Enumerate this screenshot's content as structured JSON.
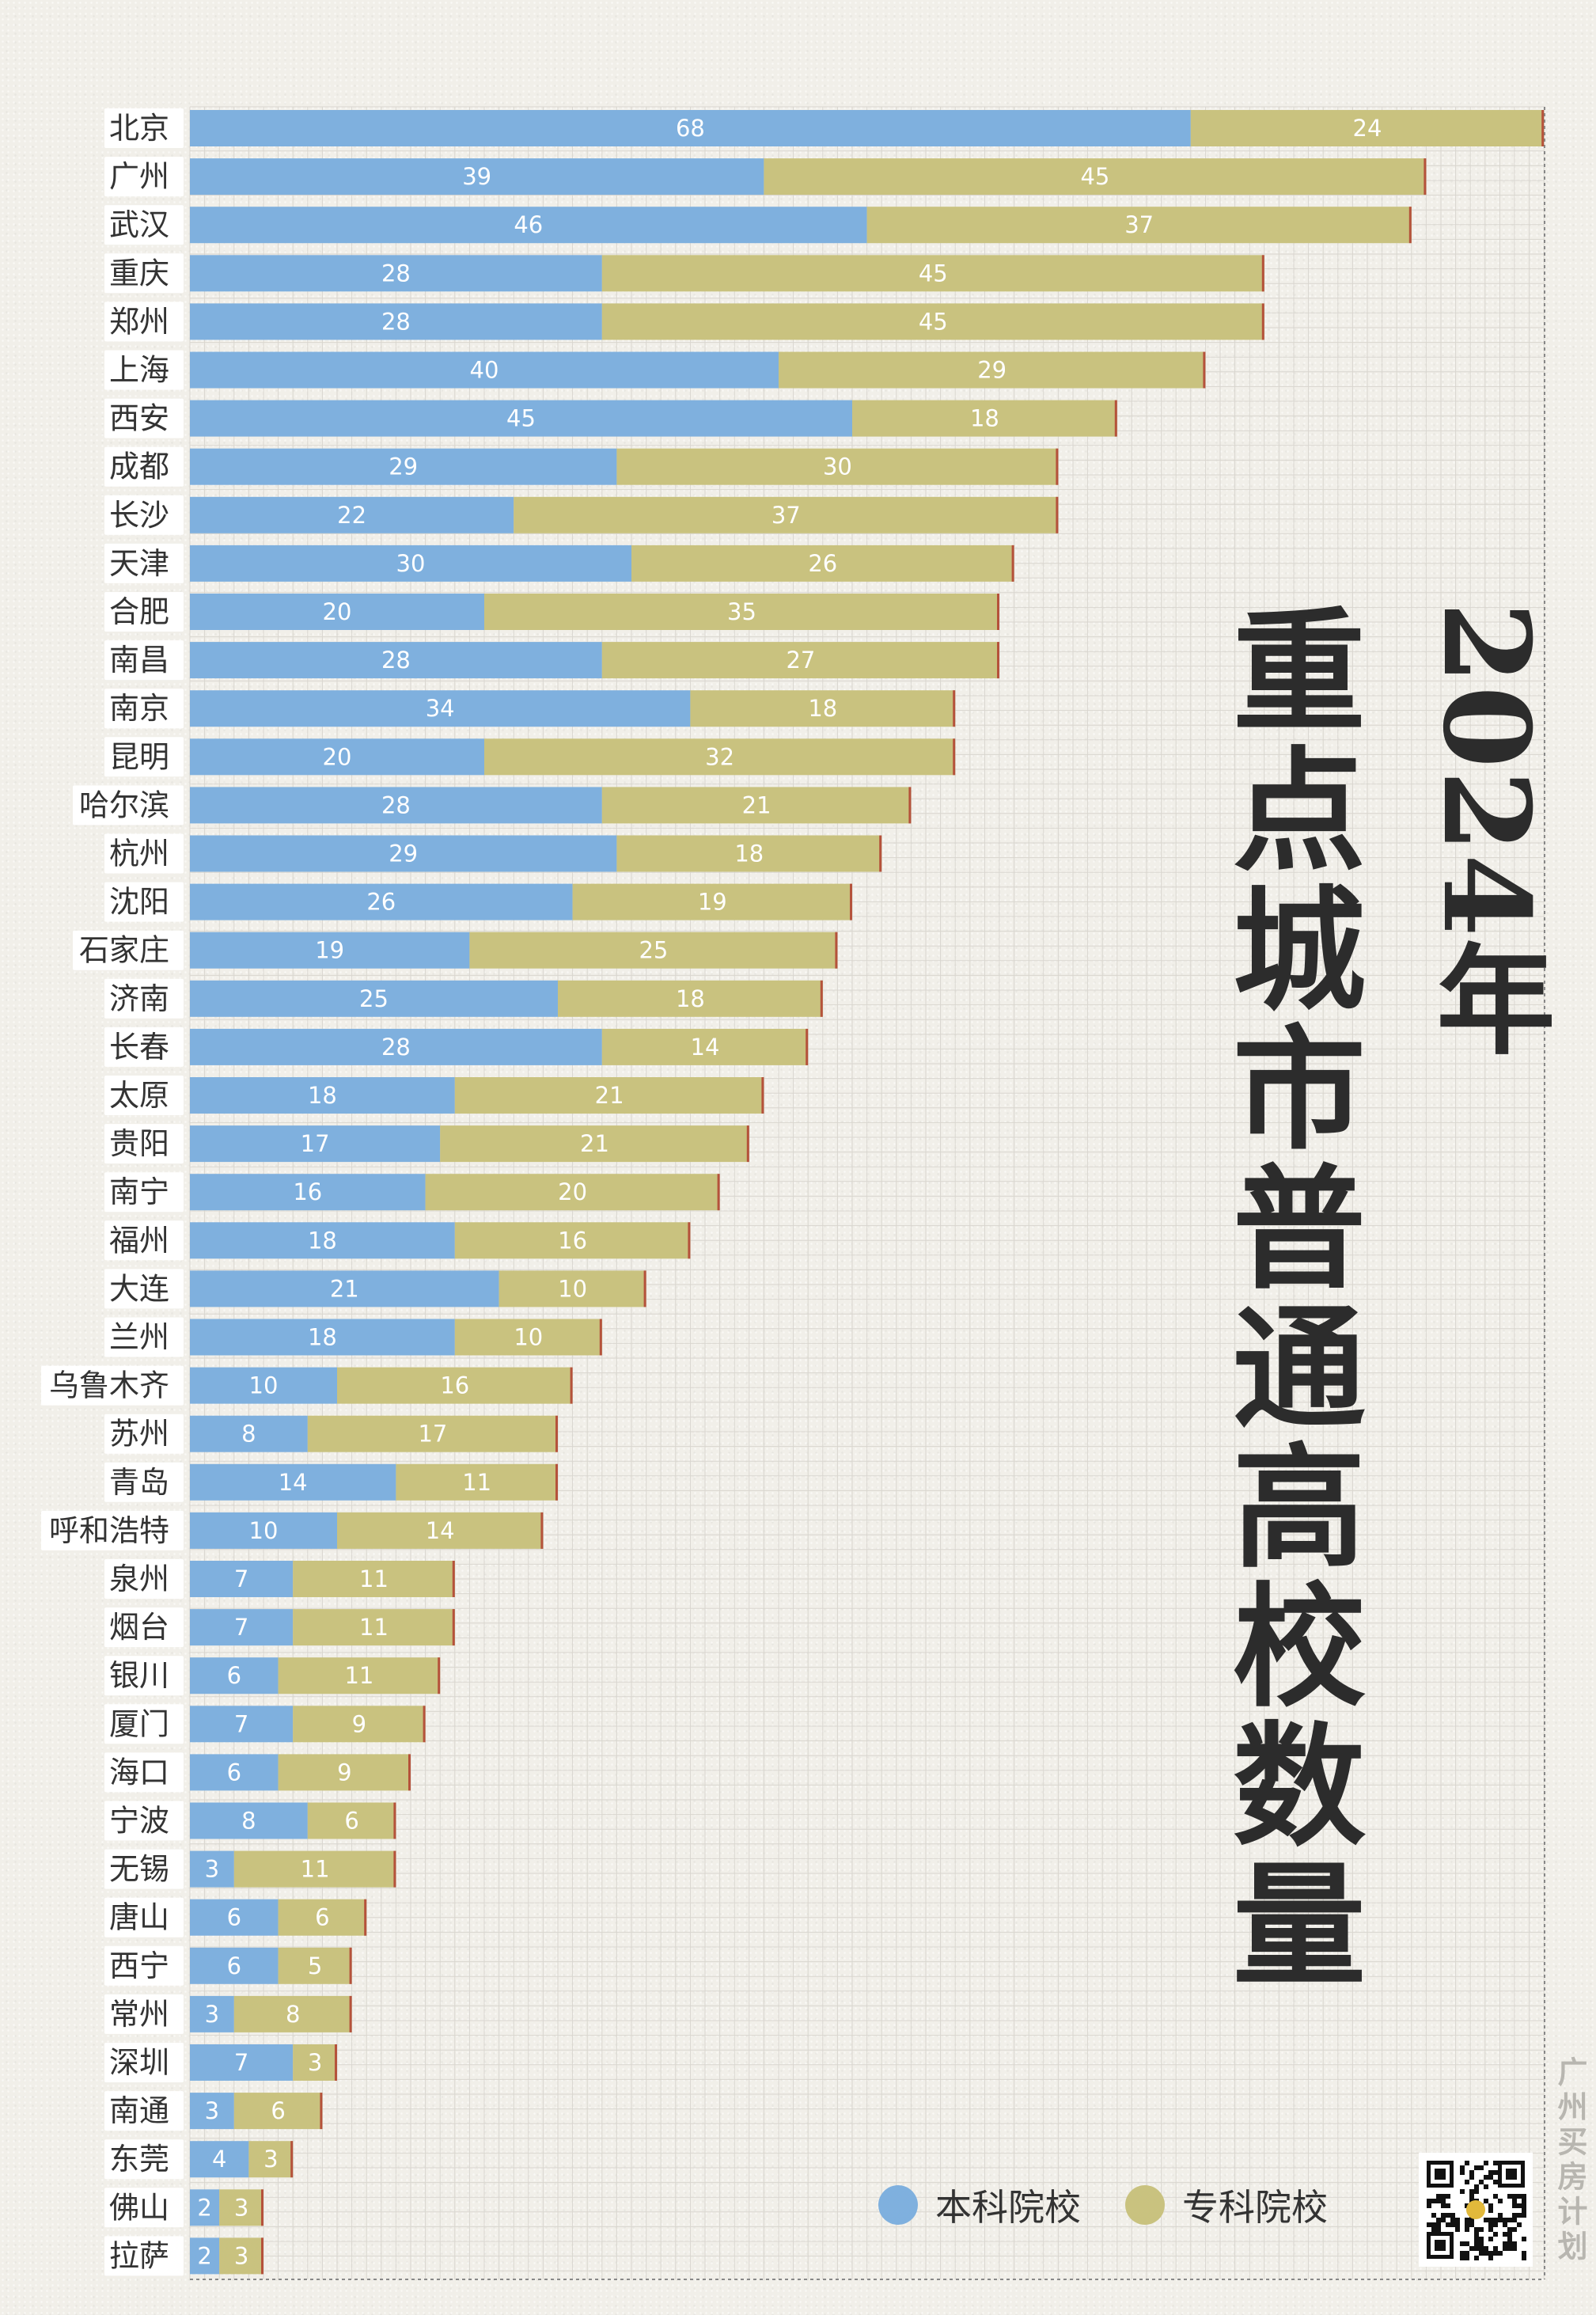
{
  "chart_data": {
    "type": "bar",
    "orientation": "horizontal",
    "stacked": true,
    "title": "2024年 重点城市普通高校数量",
    "title_year": "2024年",
    "title_main": "重点城市普通高校数量",
    "categories": [
      "北京",
      "广州",
      "武汉",
      "重庆",
      "郑州",
      "上海",
      "西安",
      "成都",
      "长沙",
      "天津",
      "合肥",
      "南昌",
      "南京",
      "昆明",
      "哈尔滨",
      "杭州",
      "沈阳",
      "石家庄",
      "济南",
      "长春",
      "太原",
      "贵阳",
      "南宁",
      "福州",
      "大连",
      "兰州",
      "乌鲁木齐",
      "苏州",
      "青岛",
      "呼和浩特",
      "泉州",
      "烟台",
      "银川",
      "厦门",
      "海口",
      "宁波",
      "无锡",
      "唐山",
      "西宁",
      "常州",
      "深圳",
      "南通",
      "东莞",
      "佛山",
      "拉萨"
    ],
    "series": [
      {
        "name": "本科院校",
        "color": "#7fb0de",
        "values": [
          68,
          39,
          46,
          28,
          28,
          40,
          45,
          29,
          22,
          30,
          20,
          28,
          34,
          20,
          28,
          29,
          26,
          19,
          25,
          28,
          18,
          17,
          16,
          18,
          21,
          18,
          10,
          8,
          14,
          10,
          7,
          7,
          6,
          7,
          6,
          8,
          3,
          6,
          6,
          3,
          7,
          3,
          4,
          2,
          2
        ]
      },
      {
        "name": "专科院校",
        "color": "#c9c27f",
        "values": [
          24,
          45,
          37,
          45,
          45,
          29,
          18,
          30,
          37,
          26,
          35,
          27,
          18,
          32,
          21,
          18,
          19,
          25,
          18,
          14,
          21,
          21,
          20,
          16,
          10,
          10,
          16,
          17,
          11,
          14,
          11,
          11,
          11,
          9,
          9,
          6,
          11,
          6,
          5,
          8,
          3,
          6,
          3,
          3,
          3
        ]
      }
    ],
    "grid": true,
    "legend_position": "bottom-right"
  },
  "legend": {
    "items": [
      {
        "label": "本科院校",
        "color": "#7fb0de"
      },
      {
        "label": "专科院校",
        "color": "#c9c27f"
      }
    ]
  },
  "brand": {
    "text": "广州买房计划"
  },
  "colors": {
    "bar_end_accent": "#b5523b",
    "label_bg": "#ffffff"
  }
}
